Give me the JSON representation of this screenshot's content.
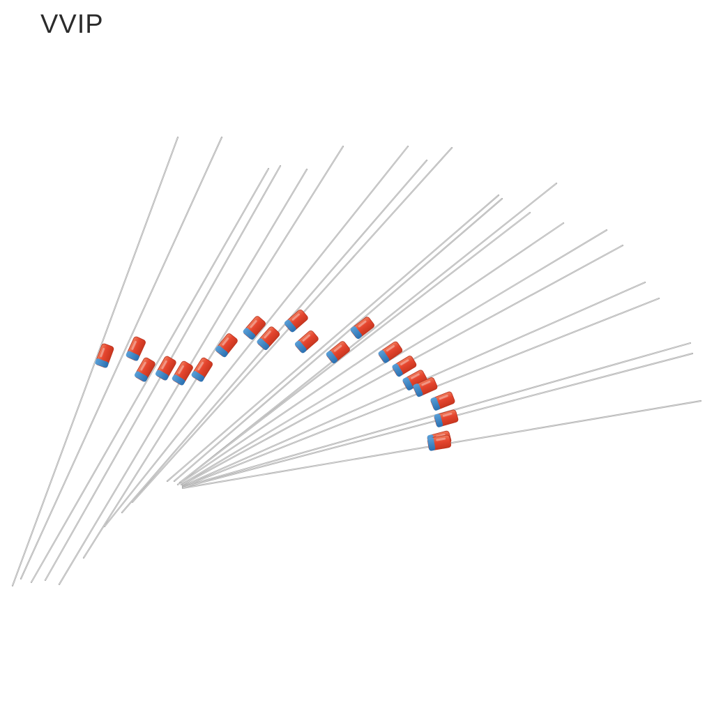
{
  "brand": "VVIP"
}
